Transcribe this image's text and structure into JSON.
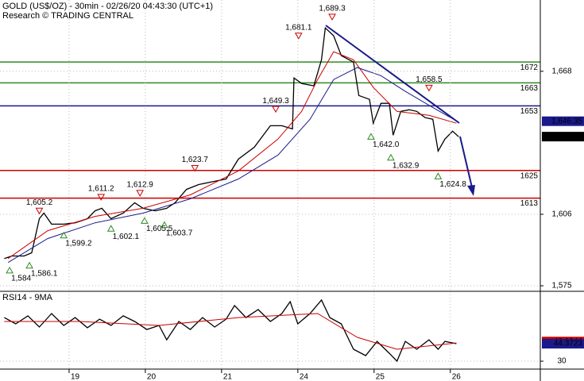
{
  "chart_data": [
    {
      "type": "line",
      "title": "GOLD (US$/OZ) - 30min - 02/26/20 04:43:30 (UTC+1)",
      "subtitle": "Research © TRADING CENTRAL",
      "xlim": [
        -0.906,
        6.18
      ],
      "ylim": [
        1572.6,
        1698.9
      ],
      "yticks": [
        {
          "value": 1668,
          "label": "1,668"
        },
        {
          "value": 1606,
          "label": "1,606"
        },
        {
          "value": 1575,
          "label": "1,575"
        }
      ],
      "grid": true,
      "series": [
        {
          "color": "#000000",
          "x": [
            -0.85,
            -0.75,
            -0.59,
            -0.49,
            -0.39,
            -0.33,
            -0.23,
            -0.07,
            0.08,
            0.24,
            0.34,
            0.43,
            0.55,
            0.71,
            0.86,
            0.97,
            1.13,
            1.28,
            1.39,
            1.54,
            1.7,
            1.91,
            2.06,
            2.22,
            2.43,
            2.64,
            2.79,
            2.93,
            2.95,
            3.05,
            3.21,
            3.31,
            3.36,
            3.47,
            3.57,
            3.73,
            3.8,
            3.94,
            3.99,
            4.09,
            4.2,
            4.25,
            4.35,
            4.46,
            4.56,
            4.67,
            4.77,
            4.84,
            4.93,
            5.03,
            5.11
          ],
          "values": [
            1586.8,
            1587.9,
            1587.9,
            1589.3,
            1604.1,
            1606.5,
            1601.7,
            1601.7,
            1602.3,
            1604.1,
            1607.5,
            1608.6,
            1604.1,
            1606.5,
            1611.0,
            1608.6,
            1607.5,
            1608.6,
            1611.0,
            1616.8,
            1618.9,
            1620.3,
            1621.3,
            1629.9,
            1635.1,
            1644.4,
            1644.4,
            1643.0,
            1665.1,
            1662.7,
            1661.7,
            1673.0,
            1686.8,
            1683.4,
            1674.8,
            1672.0,
            1657.5,
            1655.8,
            1645.5,
            1654.1,
            1654.1,
            1640.3,
            1650.6,
            1651.3,
            1650.6,
            1647.9,
            1647.2,
            1633.4,
            1638.6,
            1642.0,
            1639.6
          ]
        },
        {
          "color": "#cc0000",
          "x": [
            -0.8,
            -0.28,
            0.34,
            0.97,
            1.59,
            2.22,
            2.74,
            3.05,
            3.26,
            3.47,
            3.73,
            3.99,
            4.3,
            4.72,
            5.08
          ],
          "values": [
            1586.8,
            1598.9,
            1605.1,
            1608.6,
            1614.4,
            1624.8,
            1638.6,
            1650.6,
            1664.4,
            1676.5,
            1673.0,
            1661.0,
            1650.6,
            1648.9,
            1645.5
          ]
        },
        {
          "color": "#1a1a8c",
          "x": [
            -0.8,
            -0.28,
            0.34,
            0.97,
            1.59,
            2.22,
            2.74,
            3.16,
            3.47,
            3.78,
            4.09,
            4.41,
            4.77,
            5.08
          ],
          "values": [
            1585.1,
            1595.5,
            1602.3,
            1606.5,
            1612.7,
            1621.3,
            1631.7,
            1647.2,
            1664.4,
            1669.6,
            1666.1,
            1659.3,
            1652.3,
            1646.5
          ]
        }
      ],
      "levels": [
        {
          "value": 1672,
          "color": "#2e8b22"
        },
        {
          "value": 1663,
          "color": "#2e8b22"
        },
        {
          "value": 1653,
          "color": "#1a1a8c"
        },
        {
          "value": 1625,
          "color": "#cc0000"
        },
        {
          "value": 1613,
          "color": "#cc0000"
        }
      ],
      "annotations": [
        {
          "kind": "high",
          "x": -0.39,
          "value": 1605.2,
          "label": "1,605.2"
        },
        {
          "kind": "high",
          "x": 0.42,
          "value": 1611.2,
          "label": "1,611.2"
        },
        {
          "kind": "high",
          "x": 0.93,
          "value": 1612.9,
          "label": "1,612.9"
        },
        {
          "kind": "high",
          "x": 1.65,
          "value": 1623.7,
          "label": "1,623.7"
        },
        {
          "kind": "high",
          "x": 2.71,
          "value": 1649.3,
          "label": "1,649.3"
        },
        {
          "kind": "high",
          "x": 3.01,
          "value": 1681.1,
          "label": "1,681.1"
        },
        {
          "kind": "high",
          "x": 3.45,
          "value": 1689.3,
          "label": "1,689.3"
        },
        {
          "kind": "high",
          "x": 4.72,
          "value": 1658.5,
          "label": "1,658.5"
        },
        {
          "kind": "low",
          "x": -0.78,
          "value": 1584,
          "label": "1,584"
        },
        {
          "kind": "low",
          "x": -0.52,
          "value": 1586.1,
          "label": "1,586.1"
        },
        {
          "kind": "low",
          "x": -0.07,
          "value": 1599.2,
          "label": "1,599.2"
        },
        {
          "kind": "low",
          "x": 0.55,
          "value": 1602.1,
          "label": "1,602.1"
        },
        {
          "kind": "low",
          "x": 0.99,
          "value": 1605.5,
          "label": "1,605.5"
        },
        {
          "kind": "low",
          "x": 1.25,
          "value": 1603.7,
          "label": "1,603.7"
        },
        {
          "kind": "low",
          "x": 3.96,
          "value": 1642.0,
          "label": "1,642.0"
        },
        {
          "kind": "low",
          "x": 4.22,
          "value": 1632.9,
          "label": "1,632.9"
        },
        {
          "kind": "low",
          "x": 4.84,
          "value": 1624.8,
          "label": "1,624.8"
        }
      ],
      "badges": [
        {
          "value": 1646.35,
          "label": "1,646.35",
          "color": "#1a1a8c"
        },
        {
          "value": 1639.67,
          "label": "1,639.67",
          "color": "#000000"
        }
      ]
    },
    {
      "type": "line",
      "title": "RSI14 - 9MA",
      "xlim": [
        -0.906,
        6.18
      ],
      "ylim": [
        23.5,
        87.5
      ],
      "yticks": [
        30
      ],
      "xticks": [
        {
          "value": 0,
          "label": "19"
        },
        {
          "value": 1,
          "label": "20"
        },
        {
          "value": 2,
          "label": "21"
        },
        {
          "value": 3,
          "label": "24"
        },
        {
          "value": 4,
          "label": "25"
        },
        {
          "value": 5,
          "label": "26"
        }
      ],
      "grid": true,
      "series": [
        {
          "color": "#000000",
          "x": [
            -0.85,
            -0.7,
            -0.54,
            -0.39,
            -0.23,
            -0.07,
            0.08,
            0.24,
            0.4,
            0.55,
            0.71,
            0.86,
            1.02,
            1.18,
            1.28,
            1.44,
            1.59,
            1.75,
            1.91,
            2.06,
            2.17,
            2.32,
            2.48,
            2.64,
            2.79,
            2.9,
            3.0,
            3.16,
            3.31,
            3.42,
            3.57,
            3.73,
            3.89,
            4.04,
            4.2,
            4.3,
            4.41,
            4.56,
            4.72,
            4.84,
            4.93,
            5.08
          ],
          "values": [
            65.9,
            60.7,
            67.3,
            58.1,
            69.2,
            59.4,
            65.9,
            57.5,
            64.6,
            59.4,
            67.3,
            62.7,
            56.1,
            59.4,
            47.6,
            62.7,
            56.1,
            65.9,
            58.1,
            64.6,
            75.8,
            65.9,
            72.5,
            62.7,
            69.2,
            79.0,
            60.7,
            69.2,
            80.3,
            65.9,
            60.7,
            39.8,
            34.6,
            46.3,
            36.5,
            30.0,
            46.3,
            39.8,
            47.6,
            39.8,
            46.3,
            44.4
          ]
        },
        {
          "color": "#cc0000",
          "x": [
            -0.85,
            0.14,
            1.18,
            2.22,
            3.26,
            3.78,
            4.3,
            5.08
          ],
          "values": [
            62.7,
            62.7,
            59.4,
            65.9,
            69.2,
            49.6,
            39.8,
            45.0
          ]
        }
      ],
      "badges": [
        {
          "value": 46.1944,
          "label": "46.1944",
          "color": "#cc0000"
        },
        {
          "value": 44.3723,
          "label": "44.3723",
          "color": "#1a1a8c"
        }
      ]
    }
  ]
}
